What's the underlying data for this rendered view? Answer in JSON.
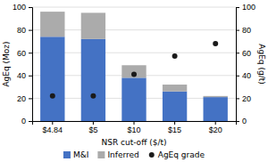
{
  "chart_data": {
    "type": "bar",
    "stacked": true,
    "categories": [
      "$4.84",
      "$5",
      "$10",
      "$15",
      "$20"
    ],
    "series": [
      {
        "name": "M&I",
        "color": "#4472C4",
        "values": [
          74,
          72,
          38,
          26,
          21
        ]
      },
      {
        "name": "Inferred",
        "color": "#ABABAB",
        "values": [
          22,
          23,
          11,
          6,
          1
        ]
      },
      {
        "name": "AgEq grade",
        "type": "scatter",
        "axis": "y2",
        "color": "#1a1a1a",
        "marker": "circle",
        "values": [
          22,
          22,
          41,
          57,
          68
        ]
      }
    ],
    "xlabel": "NSR cut-off ($/t)",
    "ylabel": "AgEq (Moz)",
    "y2label": "AgEq (g/t)",
    "ylim": [
      0,
      100
    ],
    "yticks": [
      0,
      20,
      40,
      60,
      80,
      100
    ],
    "y2lim": [
      0,
      100
    ],
    "y2ticks": [
      0,
      20,
      40,
      60,
      80,
      100
    ],
    "grid": true,
    "legend": "bottom"
  }
}
